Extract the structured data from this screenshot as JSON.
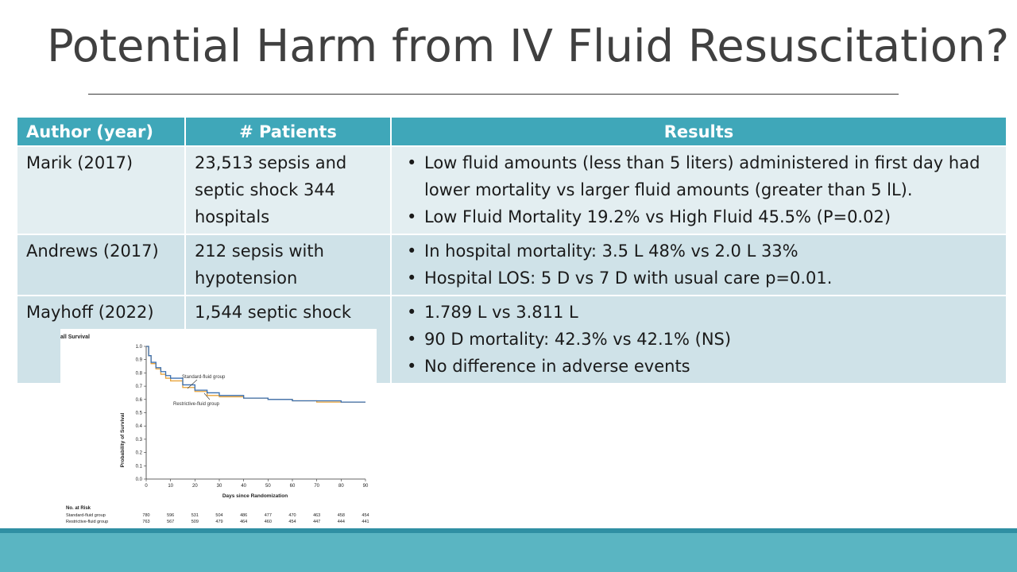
{
  "slide": {
    "title": "Potential Harm from IV Fluid Resuscitation?"
  },
  "table": {
    "headers": [
      "Author (year)",
      "# Patients",
      "Results"
    ],
    "rows": [
      {
        "author": "Marik (2017)",
        "patients": "23,513 sepsis and septic shock 344 hospitals",
        "results": [
          "Low fluid amounts (less than 5 liters) administered in first day had lower mortality vs larger fluid amounts (greater than 5 lL).",
          "Low Fluid Mortality 19.2% vs High Fluid 45.5% (P=0.02)"
        ]
      },
      {
        "author": "Andrews (2017)",
        "patients": "212 sepsis with hypotension",
        "results": [
          "In hospital mortality: 3.5 L 48% vs 2.0 L 33%",
          "Hospital LOS: 5 D vs 7 D with usual care p=0.01."
        ]
      },
      {
        "author": "Mayhoff (2022)",
        "patients": "1,544 septic shock",
        "results": [
          "1.789 L vs 3.811 L",
          "90 D mortality: 42.3% vs 42.1% (NS)",
          "No difference in adverse events"
        ]
      }
    ]
  },
  "figure": {
    "header": "all Survival",
    "ylabel": "Probability of Survival",
    "xlabel": "Days since Randomization",
    "yticks": [
      "0.0",
      "0.1",
      "0.2",
      "0.3",
      "0.4",
      "0.5",
      "0.6",
      "0.7",
      "0.8",
      "0.9",
      "1.0"
    ],
    "xticks": [
      "0",
      "10",
      "20",
      "30",
      "40",
      "50",
      "60",
      "70",
      "80",
      "90"
    ],
    "label_standard": "Standard-fluid group",
    "label_restrictive": "Restrictive-fluid group",
    "colors": {
      "standard": "#3a6fb0",
      "restrictive": "#e8a33a"
    },
    "risk_title": "No. at Risk",
    "risk_rows": [
      {
        "label": "Standard-fluid group",
        "values": [
          "780",
          "596",
          "531",
          "504",
          "486",
          "477",
          "470",
          "463",
          "458",
          "454"
        ]
      },
      {
        "label": "Restrictive-fluid group",
        "values": [
          "763",
          "567",
          "509",
          "479",
          "464",
          "460",
          "454",
          "447",
          "444",
          "441"
        ]
      }
    ]
  },
  "chart_data": {
    "type": "line",
    "title": "all Survival",
    "xlabel": "Days since Randomization",
    "ylabel": "Probability of Survival",
    "xlim": [
      0,
      90
    ],
    "ylim": [
      0,
      1.0
    ],
    "series": [
      {
        "name": "Standard-fluid group",
        "x": [
          0,
          1,
          2,
          4,
          6,
          8,
          10,
          15,
          20,
          25,
          30,
          40,
          50,
          60,
          70,
          80,
          90
        ],
        "y": [
          1.0,
          0.93,
          0.88,
          0.84,
          0.81,
          0.78,
          0.76,
          0.71,
          0.67,
          0.65,
          0.63,
          0.61,
          0.6,
          0.59,
          0.59,
          0.58,
          0.58
        ]
      },
      {
        "name": "Restrictive-fluid group",
        "x": [
          0,
          1,
          2,
          4,
          6,
          8,
          10,
          15,
          20,
          25,
          30,
          40,
          50,
          60,
          70,
          80,
          90
        ],
        "y": [
          1.0,
          0.93,
          0.87,
          0.83,
          0.79,
          0.76,
          0.74,
          0.69,
          0.66,
          0.63,
          0.62,
          0.61,
          0.6,
          0.59,
          0.58,
          0.58,
          0.58
        ]
      }
    ]
  }
}
